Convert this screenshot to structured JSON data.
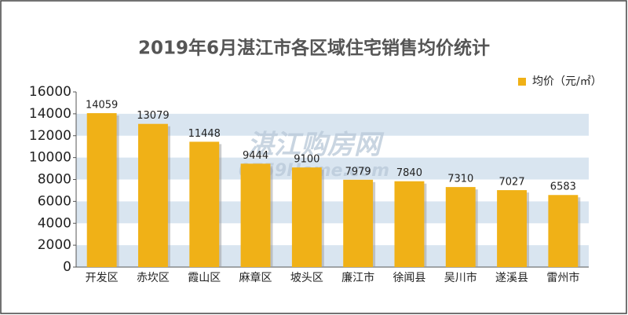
{
  "chart_data": {
    "type": "bar",
    "title": "2019年6月湛江市各区域住宅销售均价统计",
    "categories": [
      "开发区",
      "赤坎区",
      "霞山区",
      "麻章区",
      "坡头区",
      "廉江市",
      "徐闻县",
      "吴川市",
      "遂溪县",
      "雷州市"
    ],
    "series": [
      {
        "name": "均价（元/㎡）",
        "color": "#f0b117",
        "values": [
          14059,
          13079,
          11448,
          9444,
          9100,
          7979,
          7840,
          7310,
          7027,
          6583
        ]
      }
    ],
    "ylim": [
      0,
      16000
    ],
    "yticks": [
      0,
      2000,
      4000,
      6000,
      8000,
      10000,
      12000,
      14000,
      16000
    ],
    "stripes": true,
    "stripe_color": "#d9e5f0",
    "legend": "top-right",
    "watermark": [
      "湛江购房网",
      "0759Home.com"
    ]
  }
}
